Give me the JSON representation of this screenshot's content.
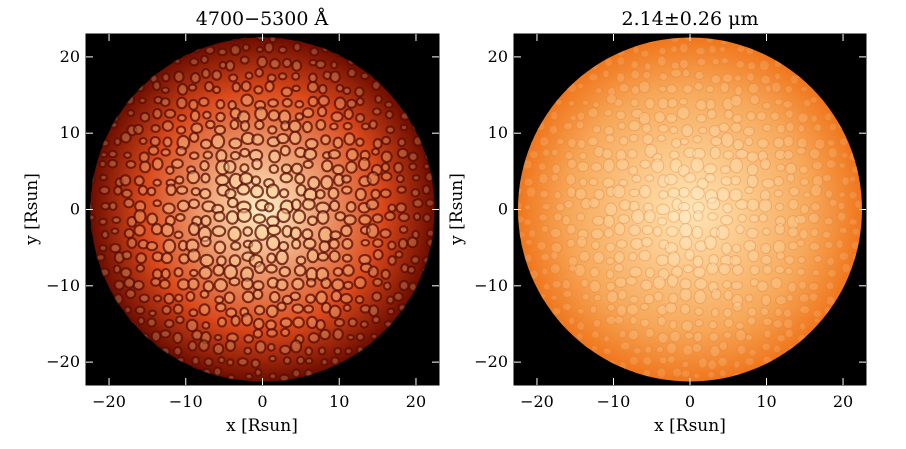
{
  "panels": [
    {
      "id": "visible",
      "title": "4700−5300 Å",
      "xlabel": "x [Rsun]",
      "ylabel": "y [Rsun]",
      "xticks": [
        -20,
        -10,
        0,
        10,
        20
      ],
      "yticks": [
        -20,
        -10,
        0,
        10,
        20
      ],
      "xrange": [
        -23,
        23
      ],
      "yrange": [
        -23,
        23
      ],
      "background": "#000000",
      "colors": {
        "center": "#fff2c8",
        "mid": "#d9481a",
        "edge": "#6e0d00",
        "lanes": "#5a0a00",
        "granule": "#ffd9a0"
      }
    },
    {
      "id": "infrared",
      "title": "2.14±0.26 μm",
      "xlabel": "x [Rsun]",
      "ylabel": "y [Rsun]",
      "xticks": [
        -20,
        -10,
        0,
        10,
        20
      ],
      "yticks": [
        -20,
        -10,
        0,
        10,
        20
      ],
      "xrange": [
        -23,
        23
      ],
      "yrange": [
        -23,
        23
      ],
      "background": "#000000",
      "colors": {
        "center": "#ffe6b8",
        "mid": "#f6a85a",
        "edge": "#f0761c",
        "lanes": "#e57a2a",
        "granule": "#fff0d0"
      }
    }
  ],
  "star_radius_rsun": 22.5
}
